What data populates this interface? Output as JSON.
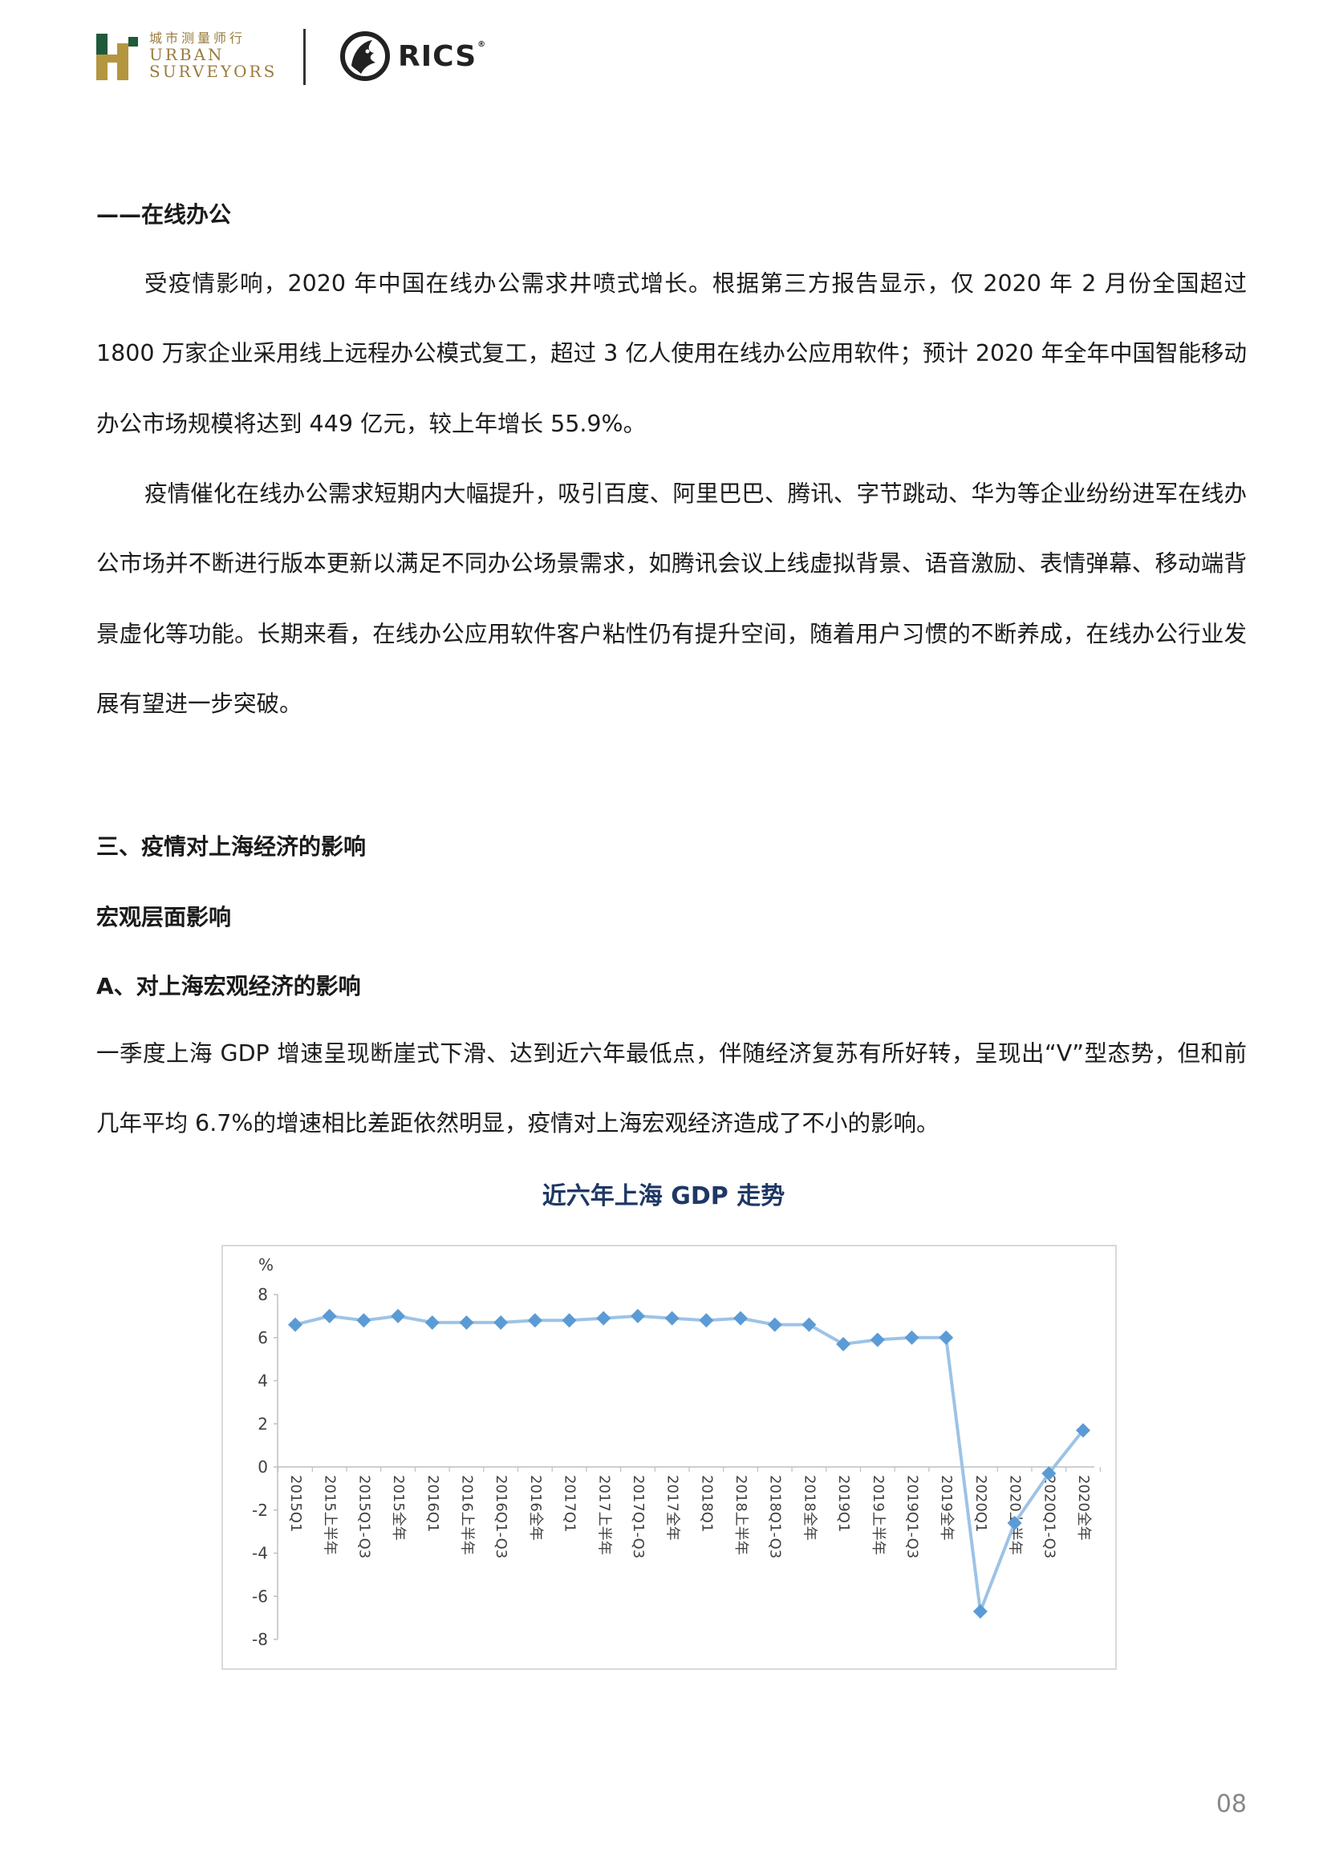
{
  "header": {
    "logo_cn": "城市测量师行",
    "logo_en_line1": "URBAN",
    "logo_en_line2": "SURVEYORS",
    "rics_label": "RICS",
    "rics_mark": "®",
    "colors": {
      "brand_gold": "#9a7b3c",
      "brand_green": "#1f5a3a"
    }
  },
  "section_online": {
    "heading": "——在线办公",
    "para1": "受疫情影响，2020 年中国在线办公需求井喷式增长。根据第三方报告显示，仅 2020 年 2 月份全国超过 1800 万家企业采用线上远程办公模式复工，超过 3 亿人使用在线办公应用软件；预计 2020 年全年中国智能移动办公市场规模将达到 449 亿元，较上年增长 55.9%。",
    "para2": "疫情催化在线办公需求短期内大幅提升，吸引百度、阿里巴巴、腾讯、字节跳动、华为等企业纷纷进军在线办公市场并不断进行版本更新以满足不同办公场景需求，如腾讯会议上线虚拟背景、语音激励、表情弹幕、移动端背景虚化等功能。长期来看，在线办公应用软件客户粘性仍有提升空间，随着用户习惯的不断养成，在线办公行业发展有望进一步突破。"
  },
  "section_three": {
    "heading": "三、疫情对上海经济的影响",
    "subheading": "宏观层面影响",
    "subsub": "A、对上海宏观经济的影响",
    "para": "一季度上海 GDP 增速呈现断崖式下滑、达到近六年最低点，伴随经济复苏有所好转，呈现出“V”型态势，但和前几年平均 6.7%的增速相比差距依然明显，疫情对上海宏观经济造成了不小的影响。"
  },
  "chart_data": {
    "type": "line",
    "title": "近六年上海 GDP 走势",
    "ylabel": "%",
    "ylim": [
      -8,
      8
    ],
    "yticks": [
      "8",
      "6",
      "4",
      "2",
      "0",
      "-2",
      "-4",
      "-6",
      "-8"
    ],
    "categories": [
      "2015Q1",
      "2015上半年",
      "2015Q1-Q3",
      "2015全年",
      "2016Q1",
      "2016上半年",
      "2016Q1-Q3",
      "2016全年",
      "2017Q1",
      "2017上半年",
      "2017Q1-Q3",
      "2017全年",
      "2018Q1",
      "2018上半年",
      "2018Q1-Q3",
      "2018全年",
      "2019Q1",
      "2019上半年",
      "2019Q1-Q3",
      "2019全年",
      "2020Q1",
      "2020上半年",
      "2020Q1-Q3",
      "2020全年"
    ],
    "values": [
      6.6,
      7.0,
      6.8,
      7.0,
      6.7,
      6.7,
      6.7,
      6.8,
      6.8,
      6.9,
      7.0,
      6.9,
      6.8,
      6.9,
      6.6,
      6.6,
      5.7,
      5.9,
      6.0,
      6.0,
      -6.7,
      -2.6,
      -0.3,
      1.7
    ],
    "grid": false,
    "legend": "none",
    "colors": {
      "line": "#9dc3e6",
      "marker": "#5b9bd5"
    }
  },
  "page_number": "08"
}
